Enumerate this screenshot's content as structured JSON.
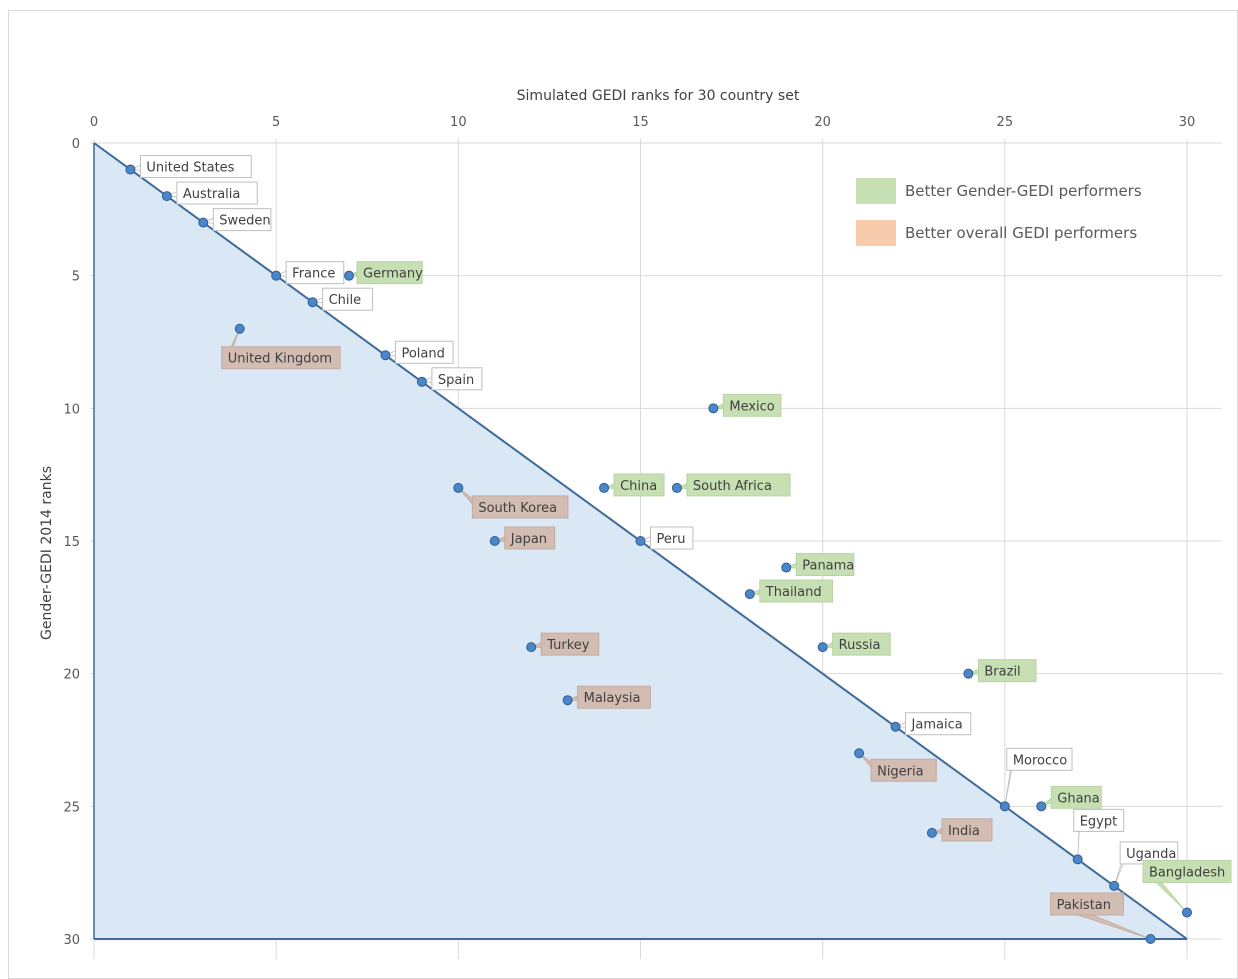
{
  "chart_data": {
    "type": "scatter",
    "title": "",
    "xlabel": "Simulated GEDI ranks for 30 country set",
    "ylabel": "Gender-GEDI 2014 ranks",
    "xlim": [
      0,
      30
    ],
    "ylim": [
      0,
      30
    ],
    "y_inverted": true,
    "x_axis_position": "top",
    "xticks": [
      "0",
      "5",
      "10",
      "15",
      "20",
      "25",
      "30"
    ],
    "yticks": [
      "0",
      "5",
      "10",
      "15",
      "20",
      "25",
      "30"
    ],
    "grid": true,
    "diagonal_shaded_region": true,
    "legend_position": "top-right",
    "legend": [
      {
        "label": "Better Gender-GEDI performers",
        "color": "#c6e0b4"
      },
      {
        "label": "Better overall GEDI performers",
        "color": "#f8cbad"
      }
    ],
    "colors": {
      "point": "#4a86c8",
      "line": "#3f6a9a",
      "shade": "#dae8f5",
      "green_label": "#c6e0b4",
      "brown_label": "#d3bcb2",
      "neutral_label": "#ffffff"
    },
    "points": [
      {
        "name": "United States",
        "x": 1,
        "y": 1,
        "group": "neutral"
      },
      {
        "name": "Australia",
        "x": 2,
        "y": 2,
        "group": "neutral"
      },
      {
        "name": "Sweden",
        "x": 3,
        "y": 3,
        "group": "neutral"
      },
      {
        "name": "France",
        "x": 5,
        "y": 5,
        "group": "neutral"
      },
      {
        "name": "Germany",
        "x": 7,
        "y": 5,
        "group": "gender"
      },
      {
        "name": "Chile",
        "x": 6,
        "y": 6,
        "group": "neutral"
      },
      {
        "name": "United Kingdom",
        "x": 4,
        "y": 7,
        "group": "overall"
      },
      {
        "name": "Poland",
        "x": 8,
        "y": 8,
        "group": "neutral"
      },
      {
        "name": "Spain",
        "x": 9,
        "y": 9,
        "group": "neutral"
      },
      {
        "name": "Mexico",
        "x": 17,
        "y": 10,
        "group": "gender"
      },
      {
        "name": "South Korea",
        "x": 10,
        "y": 13,
        "group": "overall"
      },
      {
        "name": "China",
        "x": 14,
        "y": 13,
        "group": "gender"
      },
      {
        "name": "South Africa",
        "x": 16,
        "y": 13,
        "group": "gender"
      },
      {
        "name": "Japan",
        "x": 11,
        "y": 15,
        "group": "overall"
      },
      {
        "name": "Peru",
        "x": 15,
        "y": 15,
        "group": "neutral"
      },
      {
        "name": "Panama",
        "x": 19,
        "y": 16,
        "group": "gender"
      },
      {
        "name": "Thailand",
        "x": 18,
        "y": 17,
        "group": "gender"
      },
      {
        "name": "Turkey",
        "x": 12,
        "y": 19,
        "group": "overall"
      },
      {
        "name": "Russia",
        "x": 20,
        "y": 19,
        "group": "gender"
      },
      {
        "name": "Brazil",
        "x": 24,
        "y": 20,
        "group": "gender"
      },
      {
        "name": "Malaysia",
        "x": 13,
        "y": 21,
        "group": "overall"
      },
      {
        "name": "Jamaica",
        "x": 22,
        "y": 22,
        "group": "neutral"
      },
      {
        "name": "Nigeria",
        "x": 21,
        "y": 23,
        "group": "overall"
      },
      {
        "name": "Morocco",
        "x": 25,
        "y": 25,
        "group": "neutral"
      },
      {
        "name": "Ghana",
        "x": 26,
        "y": 25,
        "group": "gender"
      },
      {
        "name": "India",
        "x": 23,
        "y": 26,
        "group": "overall"
      },
      {
        "name": "Egypt",
        "x": 27,
        "y": 27,
        "group": "neutral"
      },
      {
        "name": "Uganda",
        "x": 28,
        "y": 28,
        "group": "neutral"
      },
      {
        "name": "Bangladesh",
        "x": 30,
        "y": 29,
        "group": "gender"
      },
      {
        "name": "Pakistan",
        "x": 29,
        "y": 30,
        "group": "overall"
      }
    ]
  }
}
